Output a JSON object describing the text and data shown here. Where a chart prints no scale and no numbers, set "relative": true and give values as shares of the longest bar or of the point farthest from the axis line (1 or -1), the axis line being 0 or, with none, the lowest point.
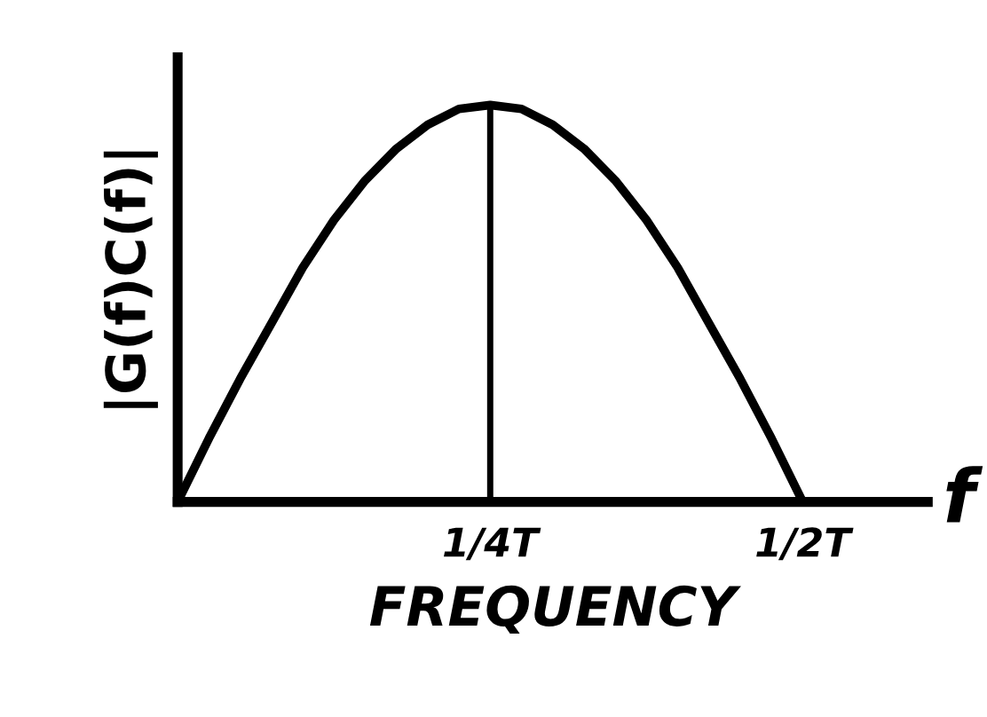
{
  "chart_data": {
    "type": "line",
    "relative": true,
    "xlabel": "FREQUENCY",
    "ylabel": "|G(f)C(f)|",
    "annotations": [
      "f"
    ],
    "categories": [
      null,
      null,
      null,
      null,
      null,
      null,
      null,
      null,
      null,
      null,
      "1/4T",
      null,
      null,
      null,
      null,
      null,
      null,
      null,
      null,
      null,
      "1/2T"
    ],
    "series": [
      {
        "color": "#000000",
        "values": [
          0,
          0.16,
          0.31,
          0.45,
          0.59,
          0.71,
          0.81,
          0.89,
          0.95,
          0.99,
          1,
          0.99,
          0.95,
          0.89,
          0.81,
          0.71,
          0.59,
          0.45,
          0.31,
          0.16,
          0
        ]
      }
    ],
    "ref_lines": [
      {
        "axis": "x",
        "value": "1/4T",
        "label": null,
        "color": "#000000",
        "line_style": "solid"
      }
    ],
    "tick_labels": "x",
    "grid": false,
    "legend": false,
    "marker": "none",
    "line_style": "solid"
  }
}
